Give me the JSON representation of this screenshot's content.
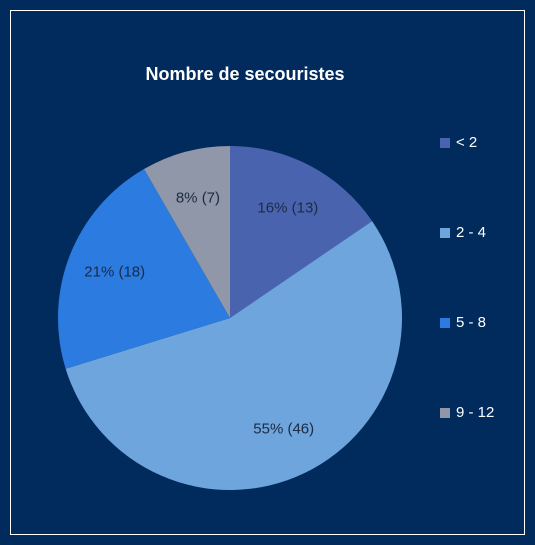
{
  "chart_data": {
    "type": "pie",
    "title": "Nombre de secouristes",
    "categories": [
      "< 2",
      "2 - 4",
      "5 - 8",
      "9 - 12"
    ],
    "values": [
      13,
      46,
      18,
      7
    ],
    "value_labels": [
      "16% (13)",
      "55% (46)",
      "21% (18)",
      "8% (7)"
    ],
    "colors": [
      "#4a63ae",
      "#6ea5dc",
      "#2b7be0",
      "#8f97a8"
    ],
    "legend": "right"
  }
}
